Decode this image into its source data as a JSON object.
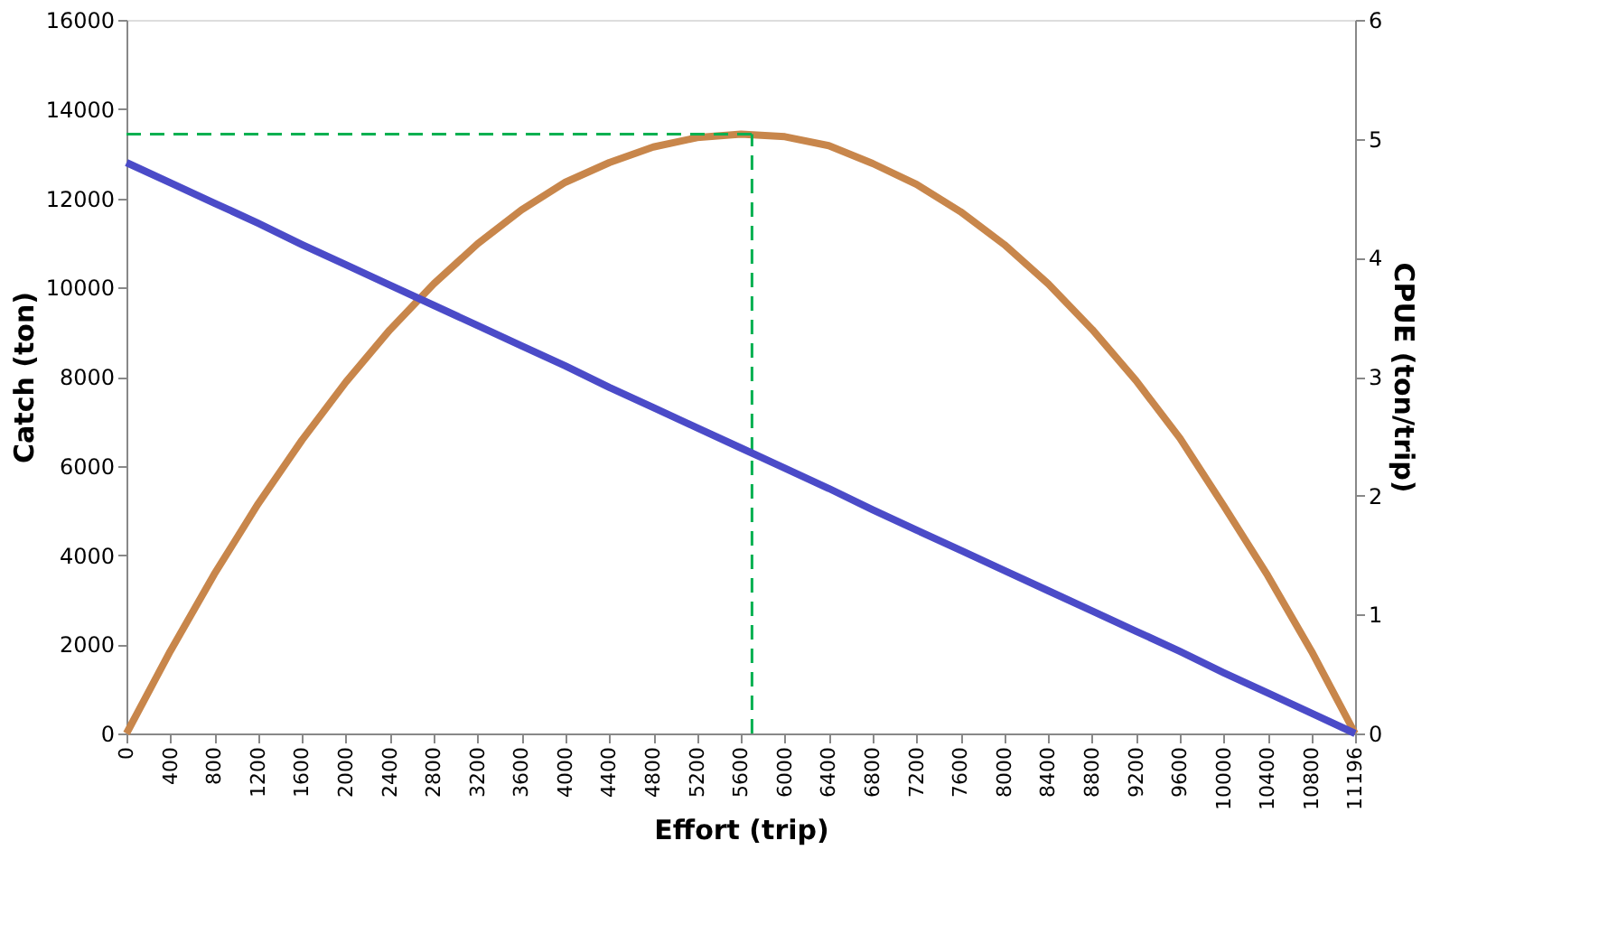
{
  "chart_data": {
    "type": "line",
    "xlabel": "Effort (trip)",
    "ylabel": "Catch (ton)",
    "y2label": "CPUE (ton/trip)",
    "x": [
      0,
      400,
      800,
      1200,
      1600,
      2000,
      2400,
      2800,
      3200,
      3600,
      4000,
      4400,
      4800,
      5200,
      5600,
      6000,
      6400,
      6800,
      7200,
      7600,
      8000,
      8400,
      8800,
      9200,
      9600,
      10000,
      10400,
      10800,
      11196
    ],
    "series": [
      {
        "color": "#c8864b",
        "axis": "y",
        "values": [
          0,
          1850,
          3570,
          5150,
          6580,
          7880,
          9050,
          10080,
          10980,
          11740,
          12360,
          12800,
          13150,
          13360,
          13440,
          13380,
          13180,
          12780,
          12310,
          11700,
          10960,
          10080,
          9060,
          7910,
          6620,
          5100,
          3540,
          1840,
          0
        ]
      },
      {
        "color": "#4b4bc8",
        "axis": "y2",
        "values": [
          4.8,
          4.63,
          4.46,
          4.29,
          4.11,
          3.94,
          3.77,
          3.6,
          3.43,
          3.26,
          3.09,
          2.91,
          2.74,
          2.57,
          2.4,
          2.23,
          2.06,
          1.88,
          1.71,
          1.54,
          1.37,
          1.2,
          1.03,
          0.86,
          0.69,
          0.51,
          0.34,
          0.17,
          0
        ]
      }
    ],
    "xlim": [
      0,
      11196
    ],
    "xticks": [
      0,
      400,
      800,
      1200,
      1600,
      2000,
      2400,
      2800,
      3200,
      3600,
      4000,
      4400,
      4800,
      5200,
      5600,
      6000,
      6400,
      6800,
      7200,
      7600,
      8000,
      8400,
      8800,
      9200,
      9600,
      10000,
      10400,
      10800,
      11196
    ],
    "ylim": [
      0,
      16000
    ],
    "yticks": [
      0,
      2000,
      4000,
      6000,
      8000,
      10000,
      12000,
      14000,
      16000
    ],
    "y2lim": [
      0,
      6
    ],
    "y2ticks": [
      0,
      1,
      2,
      3,
      4,
      5,
      6
    ],
    "ref_lines": [
      {
        "axis": "y",
        "value": 13440,
        "color": "#00b050",
        "line_style": "dashed"
      },
      {
        "axis": "x",
        "value": 5700,
        "color": "#00b050",
        "line_style": "dashed"
      }
    ],
    "grid": false,
    "marker": "none",
    "line_style": "solid"
  }
}
